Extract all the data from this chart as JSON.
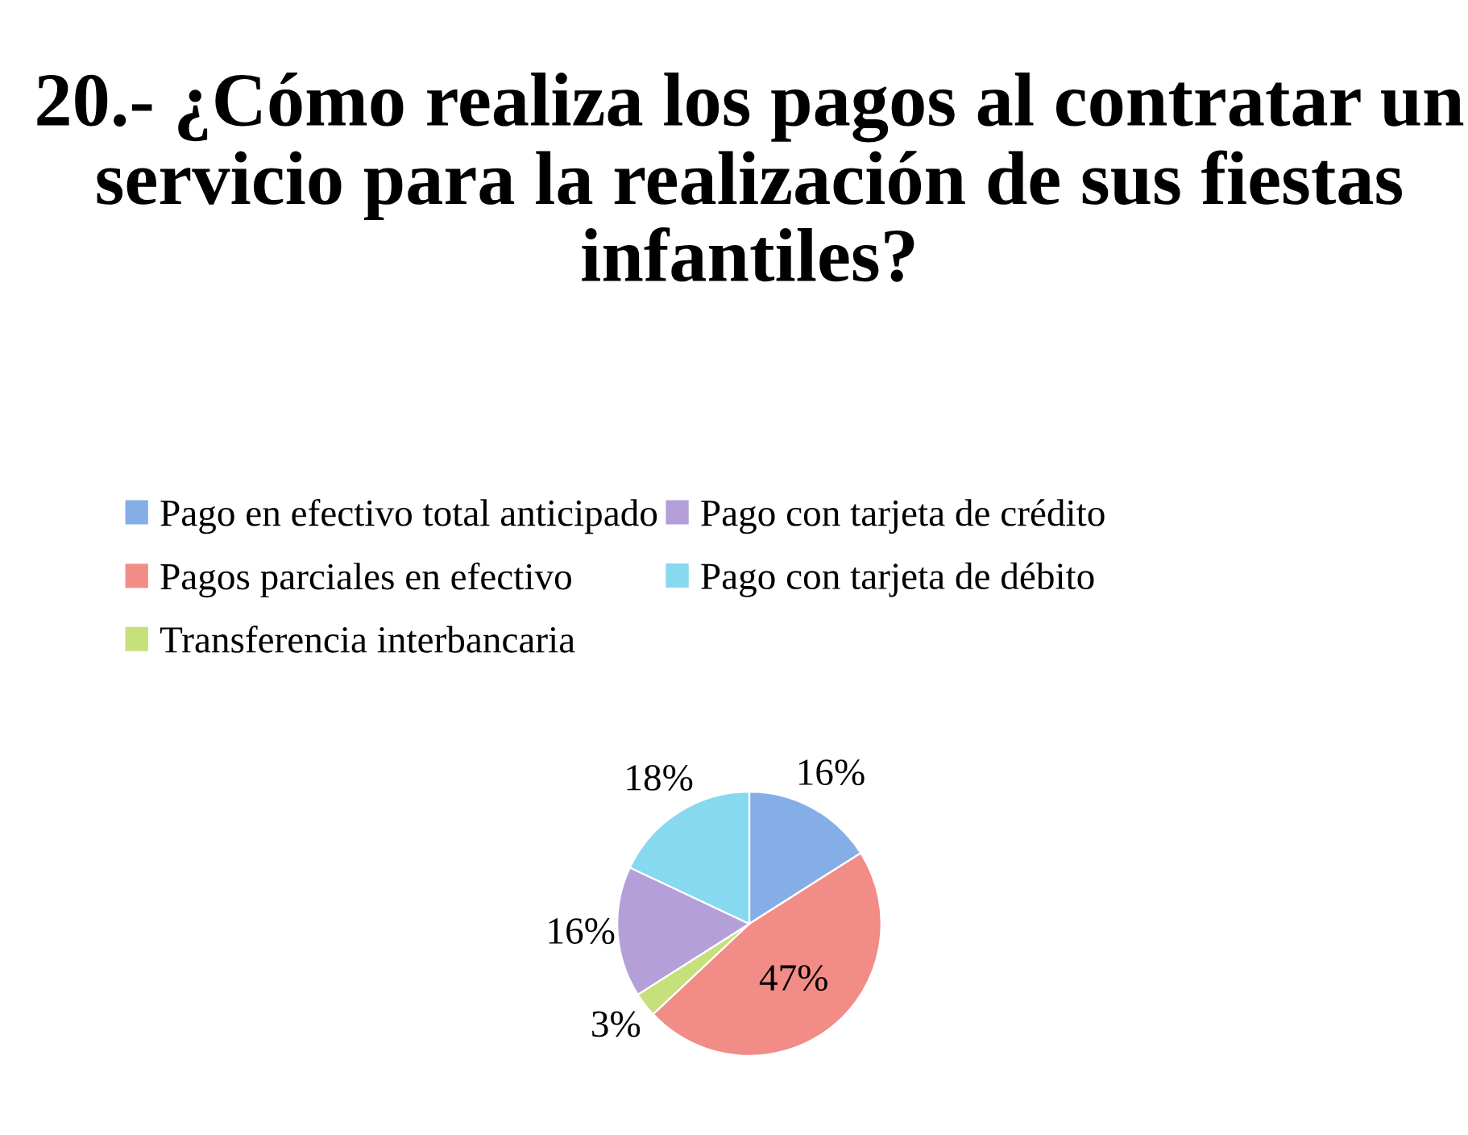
{
  "chart_data": {
    "type": "pie",
    "title": "20.- ¿Cómo realiza los pagos al contratar un servicio para la realización de sus fiestas infantiles?",
    "categories": [
      "Pago en efectivo total anticipado",
      "Pagos parciales en efectivo",
      "Transferencia interbancaria",
      "Pago con tarjeta de crédito",
      "Pago con tarjeta de débito"
    ],
    "values": [
      16,
      47,
      3,
      16,
      18
    ],
    "colors": [
      "#86aee6",
      "#f28c86",
      "#c6e07c",
      "#b49fd8",
      "#86d9ee"
    ],
    "value_labels": [
      "16%",
      "47%",
      "3%",
      "16%",
      "18%"
    ],
    "legend": "top"
  }
}
